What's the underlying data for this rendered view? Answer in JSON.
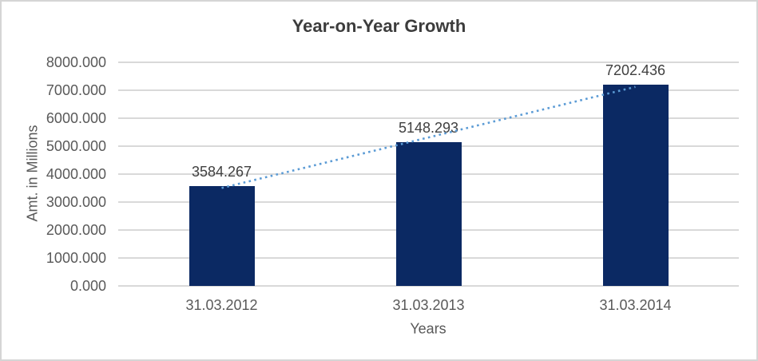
{
  "colors": {
    "bar": "#0b2963",
    "trendline": "#5b9bd5",
    "gridline": "#d9d9d9",
    "tick_label": "#595959",
    "data_label": "#404040",
    "title": "#3c3c3c",
    "frame_border": "#d5d5d5",
    "background": "#ffffff"
  },
  "chart_data": {
    "type": "bar",
    "title": "Year-on-Year Growth",
    "xlabel": "Years",
    "ylabel": "Amt. in Millions",
    "categories": [
      "31.03.2012",
      "31.03.2013",
      "31.03.2014"
    ],
    "values": [
      3584.267,
      5148.293,
      7202.436
    ],
    "data_labels": [
      "3584.267",
      "5148.293",
      "7202.436"
    ],
    "ylim": [
      0,
      8000
    ],
    "yticks": [
      0,
      1000,
      2000,
      3000,
      4000,
      5000,
      6000,
      7000,
      8000
    ],
    "ytick_labels": [
      "0.000",
      "1000.000",
      "2000.000",
      "3000.000",
      "4000.000",
      "5000.000",
      "6000.000",
      "7000.000",
      "8000.000"
    ],
    "grid": true,
    "legend": "none",
    "trendline": {
      "type": "linear",
      "style": "dotted"
    }
  }
}
